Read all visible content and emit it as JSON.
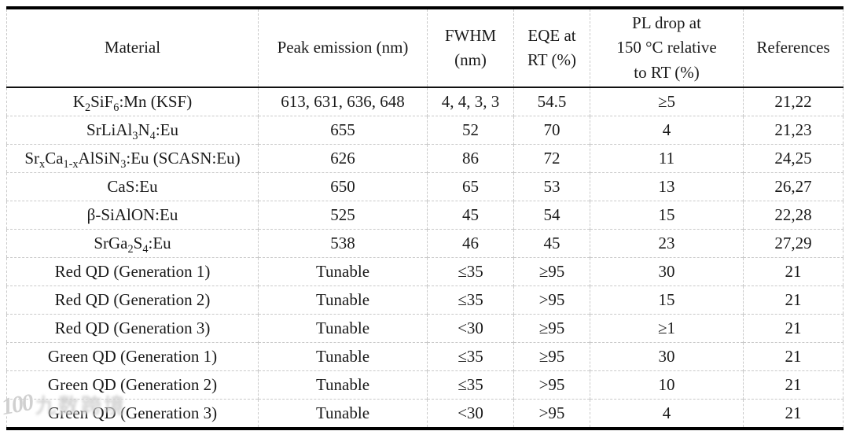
{
  "page": {
    "background": "#ffffff",
    "text_color": "#1a1a1a",
    "heavy_border_color": "#000000",
    "grid_line_color": "#c9c9c9"
  },
  "table": {
    "columns": [
      {
        "label": "Material"
      },
      {
        "label": "Peak emission (nm)"
      },
      {
        "label": "FWHM\n(nm)"
      },
      {
        "label": "EQE at\nRT (%)"
      },
      {
        "label": "PL drop at\n150 °C relative\nto RT (%)"
      },
      {
        "label": "References"
      }
    ],
    "rows": [
      [
        "K₂SiF₆:Mn (KSF)",
        "613, 631, 636, 648",
        "4, 4, 3, 3",
        "54.5",
        "≥5",
        "21,22"
      ],
      [
        "SrLiAl₃N₄:Eu",
        "655",
        "52",
        "70",
        "4",
        "21,23"
      ],
      [
        "SrₓCa₁₋ₓAlSiN₃:Eu (SCASN:Eu)",
        "626",
        "86",
        "72",
        "11",
        "24,25"
      ],
      [
        "CaS:Eu",
        "650",
        "65",
        "53",
        "13",
        "26,27"
      ],
      [
        "β-SiAlON:Eu",
        "525",
        "45",
        "54",
        "15",
        "22,28"
      ],
      [
        "SrGa₂S₄:Eu",
        "538",
        "46",
        "45",
        "23",
        "27,29"
      ],
      [
        "Red QD (Generation 1)",
        "Tunable",
        "≤35",
        "≥95",
        "30",
        "21"
      ],
      [
        "Red QD (Generation 2)",
        "Tunable",
        "≤35",
        ">95",
        "15",
        "21"
      ],
      [
        "Red QD (Generation 3)",
        "Tunable",
        "<30",
        "≥95",
        "≥1",
        "21"
      ],
      [
        "Green QD (Generation 1)",
        "Tunable",
        "≤35",
        "≥95",
        "30",
        "21"
      ],
      [
        "Green QD (Generation 2)",
        "Tunable",
        "≤35",
        ">95",
        "10",
        "21"
      ],
      [
        "Green QD (Generation 3)",
        "Tunable",
        "<30",
        ">95",
        "4",
        "21"
      ]
    ]
  },
  "watermark": {
    "logo_text": "100",
    "label": "九数跨境"
  }
}
